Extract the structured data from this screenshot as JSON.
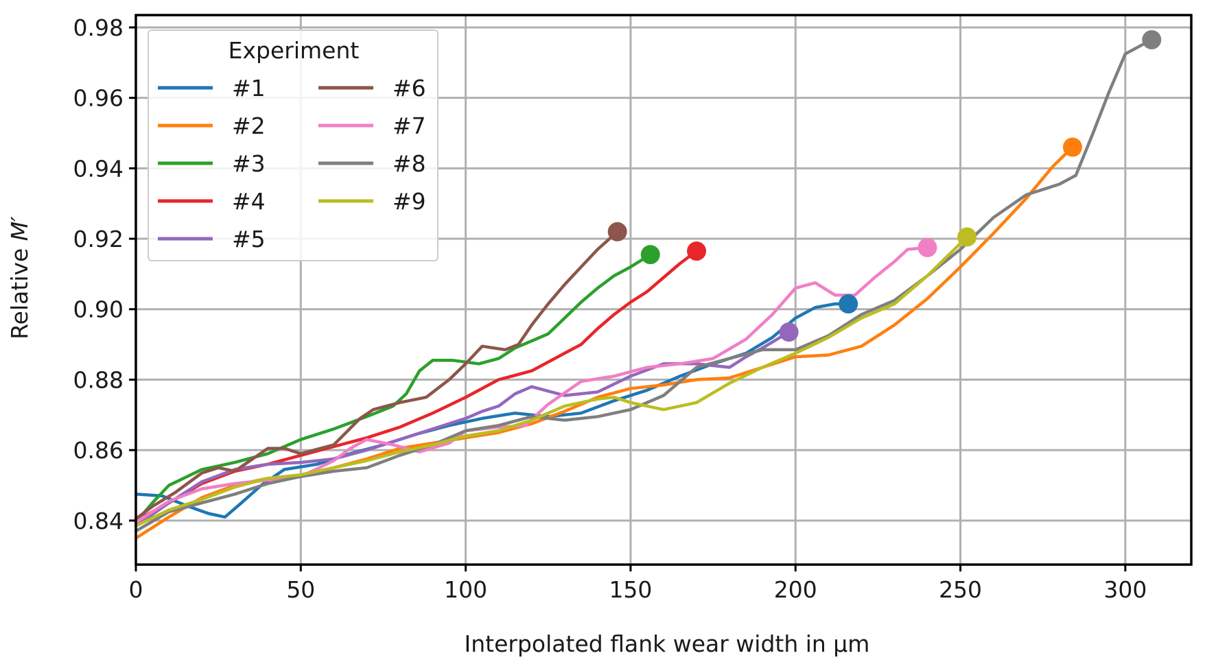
{
  "chart_data": {
    "type": "line",
    "title": "",
    "xlabel": "Interpolated flank wear width in µm",
    "ylabel_prefix": "Relative ",
    "ylabel_var": "M′",
    "xlim": [
      0,
      320
    ],
    "ylim": [
      0.8275,
      0.9835
    ],
    "x_ticks": [
      0,
      50,
      100,
      150,
      200,
      250,
      300
    ],
    "y_ticks": [
      0.84,
      0.86,
      0.88,
      0.9,
      0.92,
      0.94,
      0.96,
      0.98
    ],
    "y_tick_labels": [
      "0.84",
      "0.86",
      "0.88",
      "0.90",
      "0.92",
      "0.94",
      "0.96",
      "0.98"
    ],
    "grid": true,
    "legend": {
      "title": "Experiment",
      "placement": "upper-left",
      "columns": 2
    },
    "series": [
      {
        "name": "#1",
        "color": "#1f77b4",
        "points": [
          [
            0,
            0.8475
          ],
          [
            8,
            0.847
          ],
          [
            16,
            0.844
          ],
          [
            22,
            0.842
          ],
          [
            27,
            0.841
          ],
          [
            32,
            0.845
          ],
          [
            38,
            0.85
          ],
          [
            45,
            0.8545
          ],
          [
            55,
            0.856
          ],
          [
            65,
            0.859
          ],
          [
            75,
            0.8615
          ],
          [
            85,
            0.8645
          ],
          [
            95,
            0.867
          ],
          [
            105,
            0.869
          ],
          [
            115,
            0.8705
          ],
          [
            125,
            0.8695
          ],
          [
            135,
            0.8705
          ],
          [
            145,
            0.874
          ],
          [
            155,
            0.877
          ],
          [
            165,
            0.881
          ],
          [
            175,
            0.8845
          ],
          [
            185,
            0.8875
          ],
          [
            193,
            0.892
          ],
          [
            200,
            0.8975
          ],
          [
            206,
            0.9005
          ],
          [
            212,
            0.9015
          ],
          [
            216,
            0.9015
          ]
        ]
      },
      {
        "name": "#2",
        "color": "#ff7f0e",
        "points": [
          [
            0,
            0.835
          ],
          [
            10,
            0.841
          ],
          [
            20,
            0.8465
          ],
          [
            30,
            0.85
          ],
          [
            40,
            0.852
          ],
          [
            50,
            0.8525
          ],
          [
            60,
            0.855
          ],
          [
            70,
            0.8575
          ],
          [
            80,
            0.8605
          ],
          [
            90,
            0.862
          ],
          [
            100,
            0.8635
          ],
          [
            110,
            0.865
          ],
          [
            120,
            0.8675
          ],
          [
            130,
            0.871
          ],
          [
            140,
            0.875
          ],
          [
            150,
            0.8775
          ],
          [
            160,
            0.8785
          ],
          [
            170,
            0.88
          ],
          [
            180,
            0.8805
          ],
          [
            190,
            0.8835
          ],
          [
            200,
            0.8865
          ],
          [
            210,
            0.887
          ],
          [
            220,
            0.8895
          ],
          [
            230,
            0.8955
          ],
          [
            240,
            0.903
          ],
          [
            250,
            0.912
          ],
          [
            260,
            0.9215
          ],
          [
            270,
            0.9315
          ],
          [
            278,
            0.9405
          ],
          [
            284,
            0.946
          ]
        ]
      },
      {
        "name": "#3",
        "color": "#2ca02c",
        "points": [
          [
            0,
            0.8395
          ],
          [
            5,
            0.845
          ],
          [
            10,
            0.85
          ],
          [
            20,
            0.8545
          ],
          [
            30,
            0.8565
          ],
          [
            40,
            0.859
          ],
          [
            50,
            0.863
          ],
          [
            60,
            0.866
          ],
          [
            70,
            0.8695
          ],
          [
            78,
            0.8725
          ],
          [
            82,
            0.876
          ],
          [
            86,
            0.8825
          ],
          [
            90,
            0.8855
          ],
          [
            96,
            0.8855
          ],
          [
            104,
            0.8845
          ],
          [
            110,
            0.886
          ],
          [
            115,
            0.889
          ],
          [
            120,
            0.891
          ],
          [
            125,
            0.893
          ],
          [
            130,
            0.8975
          ],
          [
            135,
            0.902
          ],
          [
            140,
            0.906
          ],
          [
            145,
            0.9095
          ],
          [
            150,
            0.912
          ],
          [
            156,
            0.9155
          ]
        ]
      },
      {
        "name": "#4",
        "color": "#e8262a",
        "points": [
          [
            0,
            0.84
          ],
          [
            10,
            0.845
          ],
          [
            20,
            0.8505
          ],
          [
            30,
            0.854
          ],
          [
            40,
            0.856
          ],
          [
            50,
            0.8585
          ],
          [
            60,
            0.861
          ],
          [
            70,
            0.8635
          ],
          [
            80,
            0.8665
          ],
          [
            90,
            0.8705
          ],
          [
            100,
            0.875
          ],
          [
            110,
            0.88
          ],
          [
            120,
            0.8825
          ],
          [
            130,
            0.8875
          ],
          [
            135,
            0.89
          ],
          [
            140,
            0.8945
          ],
          [
            145,
            0.8985
          ],
          [
            150,
            0.902
          ],
          [
            155,
            0.905
          ],
          [
            160,
            0.909
          ],
          [
            165,
            0.913
          ],
          [
            170,
            0.9165
          ]
        ]
      },
      {
        "name": "#5",
        "color": "#9467bd",
        "points": [
          [
            0,
            0.8385
          ],
          [
            10,
            0.845
          ],
          [
            20,
            0.851
          ],
          [
            30,
            0.8545
          ],
          [
            40,
            0.856
          ],
          [
            50,
            0.8565
          ],
          [
            60,
            0.8575
          ],
          [
            70,
            0.86
          ],
          [
            80,
            0.863
          ],
          [
            90,
            0.866
          ],
          [
            100,
            0.869
          ],
          [
            105,
            0.871
          ],
          [
            110,
            0.8725
          ],
          [
            115,
            0.876
          ],
          [
            120,
            0.878
          ],
          [
            130,
            0.8755
          ],
          [
            140,
            0.8765
          ],
          [
            150,
            0.881
          ],
          [
            160,
            0.8845
          ],
          [
            170,
            0.8845
          ],
          [
            180,
            0.8835
          ],
          [
            185,
            0.8865
          ],
          [
            190,
            0.889
          ],
          [
            198,
            0.8935
          ]
        ]
      },
      {
        "name": "#6",
        "color": "#8c564b",
        "points": [
          [
            0,
            0.8405
          ],
          [
            5,
            0.844
          ],
          [
            12,
            0.848
          ],
          [
            20,
            0.8535
          ],
          [
            25,
            0.855
          ],
          [
            30,
            0.854
          ],
          [
            40,
            0.8605
          ],
          [
            45,
            0.8605
          ],
          [
            50,
            0.859
          ],
          [
            60,
            0.8615
          ],
          [
            68,
            0.869
          ],
          [
            72,
            0.8715
          ],
          [
            80,
            0.8735
          ],
          [
            88,
            0.875
          ],
          [
            95,
            0.88
          ],
          [
            100,
            0.8845
          ],
          [
            105,
            0.8895
          ],
          [
            112,
            0.8885
          ],
          [
            116,
            0.89
          ],
          [
            120,
            0.8955
          ],
          [
            125,
            0.9015
          ],
          [
            130,
            0.907
          ],
          [
            135,
            0.912
          ],
          [
            140,
            0.917
          ],
          [
            146,
            0.922
          ]
        ]
      },
      {
        "name": "#7",
        "color": "#f07fc6",
        "points": [
          [
            0,
            0.8395
          ],
          [
            10,
            0.8455
          ],
          [
            20,
            0.849
          ],
          [
            30,
            0.8505
          ],
          [
            40,
            0.8515
          ],
          [
            50,
            0.8525
          ],
          [
            60,
            0.857
          ],
          [
            65,
            0.8605
          ],
          [
            70,
            0.863
          ],
          [
            78,
            0.8615
          ],
          [
            86,
            0.8595
          ],
          [
            95,
            0.862
          ],
          [
            100,
            0.8655
          ],
          [
            110,
            0.8665
          ],
          [
            118,
            0.867
          ],
          [
            125,
            0.873
          ],
          [
            135,
            0.8795
          ],
          [
            145,
            0.881
          ],
          [
            155,
            0.8835
          ],
          [
            165,
            0.8845
          ],
          [
            175,
            0.886
          ],
          [
            185,
            0.8915
          ],
          [
            193,
            0.8985
          ],
          [
            200,
            0.906
          ],
          [
            206,
            0.9075
          ],
          [
            212,
            0.904
          ],
          [
            218,
            0.904
          ],
          [
            224,
            0.909
          ],
          [
            230,
            0.9135
          ],
          [
            234,
            0.917
          ],
          [
            240,
            0.9175
          ]
        ]
      },
      {
        "name": "#8",
        "color": "#7f7f7f",
        "points": [
          [
            0,
            0.837
          ],
          [
            10,
            0.8425
          ],
          [
            20,
            0.845
          ],
          [
            30,
            0.8475
          ],
          [
            40,
            0.8505
          ],
          [
            50,
            0.8525
          ],
          [
            60,
            0.854
          ],
          [
            70,
            0.855
          ],
          [
            80,
            0.8585
          ],
          [
            90,
            0.8615
          ],
          [
            100,
            0.8655
          ],
          [
            110,
            0.867
          ],
          [
            120,
            0.8695
          ],
          [
            130,
            0.8685
          ],
          [
            140,
            0.8695
          ],
          [
            150,
            0.8715
          ],
          [
            160,
            0.8755
          ],
          [
            170,
            0.8835
          ],
          [
            180,
            0.886
          ],
          [
            190,
            0.8885
          ],
          [
            200,
            0.8885
          ],
          [
            210,
            0.8925
          ],
          [
            220,
            0.8985
          ],
          [
            230,
            0.9025
          ],
          [
            240,
            0.9095
          ],
          [
            250,
            0.917
          ],
          [
            260,
            0.926
          ],
          [
            270,
            0.9325
          ],
          [
            280,
            0.9355
          ],
          [
            285,
            0.938
          ],
          [
            290,
            0.9495
          ],
          [
            295,
            0.9615
          ],
          [
            300,
            0.9725
          ],
          [
            303,
            0.974
          ],
          [
            308,
            0.9765
          ]
        ]
      },
      {
        "name": "#9",
        "color": "#bcbd22",
        "points": [
          [
            0,
            0.8385
          ],
          [
            10,
            0.843
          ],
          [
            20,
            0.846
          ],
          [
            30,
            0.8495
          ],
          [
            40,
            0.852
          ],
          [
            50,
            0.853
          ],
          [
            60,
            0.855
          ],
          [
            70,
            0.857
          ],
          [
            80,
            0.8595
          ],
          [
            90,
            0.8615
          ],
          [
            100,
            0.864
          ],
          [
            110,
            0.8655
          ],
          [
            120,
            0.8685
          ],
          [
            130,
            0.8725
          ],
          [
            140,
            0.8745
          ],
          [
            145,
            0.875
          ],
          [
            150,
            0.8735
          ],
          [
            160,
            0.8715
          ],
          [
            170,
            0.8735
          ],
          [
            180,
            0.879
          ],
          [
            190,
            0.8835
          ],
          [
            200,
            0.8875
          ],
          [
            210,
            0.892
          ],
          [
            220,
            0.8975
          ],
          [
            230,
            0.9015
          ],
          [
            240,
            0.9095
          ],
          [
            246,
            0.915
          ],
          [
            252,
            0.9205
          ]
        ]
      }
    ]
  }
}
